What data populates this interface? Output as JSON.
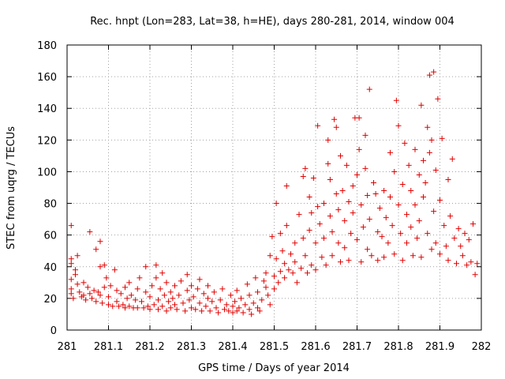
{
  "chart_data": {
    "type": "scatter",
    "title": "Rec. hnpt (Lon=283, Lat=38, h=HE), days 280-281, 2014, window 004",
    "xlabel": "GPS time / Days of year 2014",
    "ylabel": "STEC from uqrg / TECUs",
    "xlim": [
      281,
      282
    ],
    "ylim": [
      0,
      180
    ],
    "x_ticks": [
      "281",
      "281.1",
      "281.2",
      "281.3",
      "281.4",
      "281.5",
      "281.6",
      "281.7",
      "281.8",
      "281.9",
      "282"
    ],
    "x_tick_values": [
      281,
      281.1,
      281.2,
      281.3,
      281.4,
      281.5,
      281.6,
      281.7,
      281.8,
      281.9,
      282
    ],
    "y_ticks": [
      "0",
      "20",
      "40",
      "60",
      "80",
      "100",
      "120",
      "140",
      "160",
      "180"
    ],
    "y_tick_values": [
      0,
      20,
      40,
      60,
      80,
      100,
      120,
      140,
      160,
      180
    ],
    "grid": true,
    "marker": "plus",
    "color": "#e00000",
    "points": [
      [
        281.01,
        66
      ],
      [
        281.01,
        45
      ],
      [
        281.01,
        42
      ],
      [
        281.01,
        32
      ],
      [
        281.01,
        26
      ],
      [
        281.01,
        23
      ],
      [
        281.015,
        20
      ],
      [
        281.02,
        38
      ],
      [
        281.02,
        35
      ],
      [
        281.025,
        47
      ],
      [
        281.025,
        29
      ],
      [
        281.03,
        24
      ],
      [
        281.035,
        21
      ],
      [
        281.04,
        30
      ],
      [
        281.04,
        22
      ],
      [
        281.045,
        19
      ],
      [
        281.05,
        27
      ],
      [
        281.055,
        62
      ],
      [
        281.055,
        23
      ],
      [
        281.06,
        20
      ],
      [
        281.065,
        25
      ],
      [
        281.07,
        51
      ],
      [
        281.07,
        18
      ],
      [
        281.075,
        24
      ],
      [
        281.08,
        56
      ],
      [
        281.08,
        40
      ],
      [
        281.08,
        22
      ],
      [
        281.085,
        17
      ],
      [
        281.09,
        41
      ],
      [
        281.09,
        27
      ],
      [
        281.095,
        33
      ],
      [
        281.1,
        21
      ],
      [
        281.1,
        16
      ],
      [
        281.105,
        28
      ],
      [
        281.11,
        15
      ],
      [
        281.115,
        38
      ],
      [
        281.12,
        25
      ],
      [
        281.12,
        18
      ],
      [
        281.125,
        15
      ],
      [
        281.13,
        23
      ],
      [
        281.135,
        16
      ],
      [
        281.14,
        27
      ],
      [
        281.14,
        14
      ],
      [
        281.145,
        20
      ],
      [
        281.15,
        30
      ],
      [
        281.15,
        15
      ],
      [
        281.155,
        22
      ],
      [
        281.16,
        14
      ],
      [
        281.165,
        19
      ],
      [
        281.17,
        26
      ],
      [
        281.17,
        14
      ],
      [
        281.175,
        33
      ],
      [
        281.18,
        18
      ],
      [
        281.185,
        14
      ],
      [
        281.19,
        40
      ],
      [
        281.19,
        24
      ],
      [
        281.195,
        15
      ],
      [
        281.2,
        21
      ],
      [
        281.2,
        13
      ],
      [
        281.205,
        28
      ],
      [
        281.21,
        16
      ],
      [
        281.215,
        41
      ],
      [
        281.215,
        33
      ],
      [
        281.22,
        19
      ],
      [
        281.22,
        13
      ],
      [
        281.225,
        26
      ],
      [
        281.23,
        36
      ],
      [
        281.23,
        15
      ],
      [
        281.235,
        22
      ],
      [
        281.24,
        30
      ],
      [
        281.24,
        12
      ],
      [
        281.245,
        18
      ],
      [
        281.25,
        24
      ],
      [
        281.25,
        14
      ],
      [
        281.255,
        20
      ],
      [
        281.26,
        28
      ],
      [
        281.26,
        16
      ],
      [
        281.265,
        13
      ],
      [
        281.27,
        22
      ],
      [
        281.275,
        31
      ],
      [
        281.28,
        17
      ],
      [
        281.285,
        12
      ],
      [
        281.29,
        35
      ],
      [
        281.29,
        25
      ],
      [
        281.295,
        19
      ],
      [
        281.3,
        14
      ],
      [
        281.3,
        28
      ],
      [
        281.305,
        21
      ],
      [
        281.31,
        13
      ],
      [
        281.315,
        26
      ],
      [
        281.32,
        17
      ],
      [
        281.32,
        32
      ],
      [
        281.325,
        12
      ],
      [
        281.33,
        23
      ],
      [
        281.335,
        15
      ],
      [
        281.34,
        20
      ],
      [
        281.34,
        28
      ],
      [
        281.345,
        12
      ],
      [
        281.35,
        18
      ],
      [
        281.355,
        24
      ],
      [
        281.36,
        14
      ],
      [
        281.365,
        11
      ],
      [
        281.37,
        19
      ],
      [
        281.375,
        26
      ],
      [
        281.38,
        13
      ],
      [
        281.385,
        16
      ],
      [
        281.39,
        12
      ],
      [
        281.395,
        22
      ],
      [
        281.4,
        15
      ],
      [
        281.4,
        11
      ],
      [
        281.405,
        18
      ],
      [
        281.41,
        25
      ],
      [
        281.41,
        12
      ],
      [
        281.415,
        14
      ],
      [
        281.42,
        20
      ],
      [
        281.425,
        11
      ],
      [
        281.43,
        16
      ],
      [
        281.435,
        29
      ],
      [
        281.44,
        13
      ],
      [
        281.44,
        22
      ],
      [
        281.445,
        10
      ],
      [
        281.45,
        17
      ],
      [
        281.455,
        33
      ],
      [
        281.46,
        14
      ],
      [
        281.46,
        24
      ],
      [
        281.465,
        12
      ],
      [
        281.47,
        19
      ],
      [
        281.475,
        31
      ],
      [
        281.48,
        27
      ],
      [
        281.48,
        36
      ],
      [
        281.485,
        22
      ],
      [
        281.49,
        16
      ],
      [
        281.49,
        47
      ],
      [
        281.495,
        59
      ],
      [
        281.5,
        34
      ],
      [
        281.5,
        26
      ],
      [
        281.505,
        80
      ],
      [
        281.505,
        45
      ],
      [
        281.51,
        30
      ],
      [
        281.515,
        61
      ],
      [
        281.515,
        37
      ],
      [
        281.52,
        50
      ],
      [
        281.525,
        42
      ],
      [
        281.525,
        33
      ],
      [
        281.53,
        91
      ],
      [
        281.53,
        66
      ],
      [
        281.535,
        38
      ],
      [
        281.54,
        48
      ],
      [
        281.545,
        36
      ],
      [
        281.55,
        55
      ],
      [
        281.55,
        43
      ],
      [
        281.555,
        30
      ],
      [
        281.56,
        73
      ],
      [
        281.565,
        39
      ],
      [
        281.57,
        97
      ],
      [
        281.57,
        58
      ],
      [
        281.575,
        102
      ],
      [
        281.575,
        47
      ],
      [
        281.58,
        36
      ],
      [
        281.585,
        84
      ],
      [
        281.585,
        63
      ],
      [
        281.59,
        74
      ],
      [
        281.59,
        41
      ],
      [
        281.595,
        96
      ],
      [
        281.6,
        55
      ],
      [
        281.6,
        38
      ],
      [
        281.605,
        129
      ],
      [
        281.605,
        78
      ],
      [
        281.61,
        67
      ],
      [
        281.615,
        46
      ],
      [
        281.62,
        80
      ],
      [
        281.62,
        58
      ],
      [
        281.625,
        41
      ],
      [
        281.63,
        120
      ],
      [
        281.63,
        105
      ],
      [
        281.635,
        95
      ],
      [
        281.635,
        72
      ],
      [
        281.64,
        62
      ],
      [
        281.64,
        47
      ],
      [
        281.645,
        133
      ],
      [
        281.65,
        128
      ],
      [
        281.65,
        86
      ],
      [
        281.655,
        76
      ],
      [
        281.655,
        55
      ],
      [
        281.66,
        110
      ],
      [
        281.66,
        43
      ],
      [
        281.665,
        88
      ],
      [
        281.67,
        69
      ],
      [
        281.67,
        52
      ],
      [
        281.675,
        104
      ],
      [
        281.68,
        81
      ],
      [
        281.68,
        44
      ],
      [
        281.685,
        61
      ],
      [
        281.69,
        91
      ],
      [
        281.69,
        74
      ],
      [
        281.695,
        134
      ],
      [
        281.7,
        98
      ],
      [
        281.7,
        57
      ],
      [
        281.705,
        134
      ],
      [
        281.705,
        114
      ],
      [
        281.71,
        79
      ],
      [
        281.71,
        43
      ],
      [
        281.715,
        65
      ],
      [
        281.72,
        123
      ],
      [
        281.72,
        102
      ],
      [
        281.725,
        85
      ],
      [
        281.725,
        51
      ],
      [
        281.73,
        152
      ],
      [
        281.73,
        70
      ],
      [
        281.735,
        47
      ],
      [
        281.74,
        93
      ],
      [
        281.745,
        86
      ],
      [
        281.75,
        62
      ],
      [
        281.75,
        44
      ],
      [
        281.755,
        77
      ],
      [
        281.76,
        59
      ],
      [
        281.765,
        88
      ],
      [
        281.765,
        46
      ],
      [
        281.77,
        71
      ],
      [
        281.775,
        55
      ],
      [
        281.78,
        112
      ],
      [
        281.78,
        84
      ],
      [
        281.785,
        66
      ],
      [
        281.79,
        100
      ],
      [
        281.79,
        48
      ],
      [
        281.795,
        145
      ],
      [
        281.8,
        129
      ],
      [
        281.8,
        79
      ],
      [
        281.805,
        61
      ],
      [
        281.81,
        92
      ],
      [
        281.81,
        44
      ],
      [
        281.815,
        118
      ],
      [
        281.82,
        73
      ],
      [
        281.82,
        55
      ],
      [
        281.825,
        104
      ],
      [
        281.83,
        88
      ],
      [
        281.83,
        65
      ],
      [
        281.835,
        47
      ],
      [
        281.84,
        114
      ],
      [
        281.84,
        79
      ],
      [
        281.845,
        58
      ],
      [
        281.85,
        98
      ],
      [
        281.85,
        69
      ],
      [
        281.855,
        142
      ],
      [
        281.855,
        46
      ],
      [
        281.86,
        107
      ],
      [
        281.86,
        84
      ],
      [
        281.865,
        93
      ],
      [
        281.87,
        128
      ],
      [
        281.87,
        61
      ],
      [
        281.875,
        161
      ],
      [
        281.875,
        112
      ],
      [
        281.88,
        120
      ],
      [
        281.88,
        51
      ],
      [
        281.885,
        163
      ],
      [
        281.885,
        75
      ],
      [
        281.89,
        101
      ],
      [
        281.89,
        55
      ],
      [
        281.895,
        146
      ],
      [
        281.9,
        82
      ],
      [
        281.9,
        48
      ],
      [
        281.905,
        121
      ],
      [
        281.91,
        66
      ],
      [
        281.915,
        53
      ],
      [
        281.92,
        95
      ],
      [
        281.92,
        44
      ],
      [
        281.925,
        72
      ],
      [
        281.93,
        108
      ],
      [
        281.935,
        58
      ],
      [
        281.94,
        42
      ],
      [
        281.945,
        64
      ],
      [
        281.95,
        53
      ],
      [
        281.955,
        47
      ],
      [
        281.96,
        61
      ],
      [
        281.965,
        41
      ],
      [
        281.97,
        57
      ],
      [
        281.975,
        43
      ],
      [
        281.98,
        67
      ],
      [
        281.985,
        35
      ],
      [
        281.99,
        42
      ]
    ]
  }
}
